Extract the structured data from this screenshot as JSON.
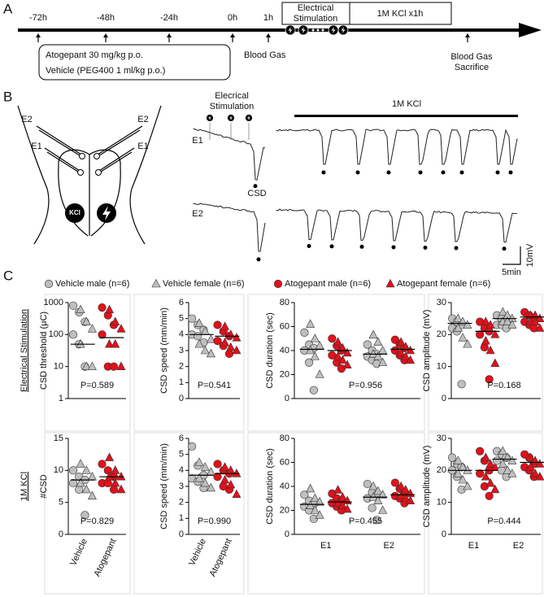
{
  "panel_labels": [
    "A",
    "B",
    "C"
  ],
  "timeline": {
    "times": [
      "-72h",
      "-48h",
      "-24h",
      "0h",
      "1h"
    ],
    "stimulation": [
      "Electrical",
      "Stimulation"
    ],
    "kcl": "1M KCl x1h",
    "treatment": [
      "Atogepant 30 mg/kg p.o.",
      "Vehicle (PEG400 1 ml/kg p.o.)"
    ],
    "blood_gas": "Blood Gas",
    "end": [
      "Blood Gas",
      "Sacrifice"
    ]
  },
  "recording": {
    "electrodes_left": [
      "E2",
      "E1"
    ],
    "electrodes_right": [
      "E2",
      "E1"
    ],
    "kcl_icon": "KCl",
    "stimulation": [
      "Elecrical",
      "Stimulation"
    ],
    "kcl": "1M KCl",
    "trace_labels": [
      "E1",
      "E2"
    ],
    "csd": "CSD",
    "scale_y": "10mV",
    "scale_x": "5min"
  },
  "legend": [
    {
      "name": "Vehicle male (n=6)",
      "color": "#bfbfbf",
      "marker": "circle"
    },
    {
      "name": "Vehicle female (n=6)",
      "color": "#bfbfbf",
      "marker": "triangle"
    },
    {
      "name": "Atogepant male (n=6)",
      "color": "#e3101a",
      "marker": "circle"
    },
    {
      "name": "Atogepant female (n=6)",
      "color": "#e3101a",
      "marker": "triangle"
    }
  ],
  "row_labels": [
    "Electrical Stimulation",
    "1M KCl"
  ],
  "chart_data": [
    {
      "type": "scatter",
      "ylabel": "CSD threshold (μC)",
      "log_scale": true,
      "ylim": [
        1,
        1000
      ],
      "yticks": [
        1,
        10,
        100,
        1000
      ],
      "annotation": "P=0.589",
      "groups": [
        {
          "male": [
            800,
            500,
            250,
            100,
            50,
            10
          ],
          "female": [
            600,
            250,
            150,
            50,
            10,
            10
          ],
          "median": 50
        },
        {
          "male": [
            700,
            400,
            200,
            100,
            10,
            10
          ],
          "female": [
            600,
            250,
            150,
            50,
            50,
            10
          ],
          "median": 80
        }
      ]
    },
    {
      "type": "scatter",
      "ylabel": "CSD speed (mm/min)",
      "ylim": [
        0,
        6
      ],
      "yticks": [
        0,
        1,
        2,
        3,
        4,
        5,
        6
      ],
      "annotation": "P=0.541",
      "groups": [
        {
          "male": [
            5.0,
            4.6,
            4.3,
            4.0,
            3.9,
            3.5
          ],
          "female": [
            4.7,
            4.2,
            3.7,
            3.4,
            3.0,
            2.8
          ],
          "median": 4.0
        },
        {
          "male": [
            4.6,
            4.2,
            3.9,
            3.6,
            3.3,
            2.8
          ],
          "female": [
            4.5,
            4.0,
            3.8,
            3.5,
            3.2,
            3.0
          ],
          "median": 3.9
        }
      ]
    },
    {
      "type": "scatter",
      "ylabel": "CSD duration (sec)",
      "ylim": [
        0,
        80
      ],
      "yticks": [
        0,
        20,
        40,
        60,
        80
      ],
      "annotation": "P=0.956",
      "groups": [
        {
          "male": [
            55,
            45,
            42,
            40,
            30,
            7
          ],
          "female": [
            62,
            50,
            44,
            40,
            35,
            20
          ],
          "median": 41
        },
        {
          "male": [
            50,
            44,
            40,
            36,
            30,
            25
          ],
          "female": [
            47,
            42,
            38,
            35,
            32,
            28
          ],
          "median": 40
        },
        {
          "male": [
            45,
            40,
            37,
            35,
            32,
            29
          ],
          "female": [
            53,
            47,
            40,
            37,
            35,
            30
          ],
          "median": 37
        },
        {
          "male": [
            49,
            45,
            42,
            40,
            36,
            32
          ],
          "female": [
            47,
            43,
            40,
            38,
            35,
            32
          ],
          "median": 41
        }
      ]
    },
    {
      "type": "scatter",
      "ylabel": "CSD amplitude (mV)",
      "ylim": [
        0,
        30
      ],
      "yticks": [
        0,
        10,
        20,
        30
      ],
      "annotation": "P=0.168",
      "groups": [
        {
          "male": [
            25,
            24,
            23,
            22,
            21,
            4.5
          ],
          "female": [
            25,
            24,
            23,
            22,
            19,
            17
          ],
          "median": 23.5
        },
        {
          "male": [
            24,
            22,
            21,
            20,
            16,
            6
          ],
          "female": [
            24,
            23,
            20,
            18,
            15,
            11
          ],
          "median": 21
        },
        {
          "male": [
            26,
            25,
            24,
            23,
            23,
            22
          ],
          "female": [
            27,
            26,
            25,
            24,
            24,
            23
          ],
          "median": 25
        },
        {
          "male": [
            27,
            26,
            25,
            24,
            23,
            22
          ],
          "female": [
            26,
            26,
            25,
            24,
            24,
            22
          ],
          "median": 25.5
        }
      ]
    },
    {
      "type": "scatter",
      "ylabel": "#CSD",
      "ylim": [
        0,
        15
      ],
      "yticks": [
        0,
        5,
        10,
        15
      ],
      "annotation": "P=0.829",
      "categories": [
        "Vehicle",
        "Atogepant"
      ],
      "groups": [
        {
          "male": [
            10,
            9,
            8.5,
            8,
            7,
            3
          ],
          "female": [
            11,
            10,
            9,
            8,
            7,
            6
          ],
          "median": 8.5
        },
        {
          "male": [
            11,
            10,
            9,
            8,
            8,
            7
          ],
          "female": [
            12,
            10,
            9,
            9,
            8,
            7
          ],
          "median": 9
        }
      ]
    },
    {
      "type": "scatter",
      "ylabel": "CSD speed (mm/min)",
      "ylim": [
        0,
        6
      ],
      "yticks": [
        0,
        1,
        2,
        3,
        4,
        5,
        6
      ],
      "annotation": "P=0.990",
      "categories": [
        "Vehicle",
        "Atogepant"
      ],
      "groups": [
        {
          "male": [
            5.5,
            4.3,
            3.7,
            3.5,
            3.3,
            2.9
          ],
          "female": [
            4.5,
            4.2,
            3.9,
            3.5,
            3.2,
            2.9
          ],
          "median": 3.7
        },
        {
          "male": [
            4.4,
            4.0,
            3.8,
            3.6,
            3.0,
            2.8
          ],
          "female": [
            4.2,
            4.0,
            3.8,
            3.4,
            3.1,
            2.5
          ],
          "median": 3.8
        }
      ]
    },
    {
      "type": "scatter",
      "ylabel": "CSD duration (sec)",
      "ylim": [
        0,
        80
      ],
      "yticks": [
        0,
        20,
        40,
        60,
        80
      ],
      "annotation": "P=0.455",
      "categories": [
        "E1",
        "E2"
      ],
      "groups": [
        {
          "male": [
            33,
            28,
            25,
            23,
            20,
            13
          ],
          "female": [
            38,
            30,
            27,
            24,
            20,
            16
          ],
          "median": 25
        },
        {
          "male": [
            34,
            30,
            28,
            26,
            23,
            20
          ],
          "female": [
            37,
            31,
            28,
            26,
            24,
            21
          ],
          "median": 27
        },
        {
          "male": [
            42,
            35,
            33,
            30,
            22,
            12
          ],
          "female": [
            40,
            36,
            33,
            31,
            28,
            20
          ],
          "median": 31
        },
        {
          "male": [
            43,
            38,
            35,
            32,
            30,
            26
          ],
          "female": [
            40,
            37,
            34,
            32,
            30,
            28
          ],
          "median": 33
        }
      ]
    },
    {
      "type": "scatter",
      "ylabel": "CSD amplitude (mV)",
      "ylim": [
        0,
        30
      ],
      "yticks": [
        0,
        10,
        20,
        30
      ],
      "annotation": "P=0.444",
      "categories": [
        "E1",
        "E2"
      ],
      "groups": [
        {
          "male": [
            24,
            22,
            21,
            20,
            18,
            14
          ],
          "female": [
            23,
            21,
            20,
            19,
            17,
            15
          ],
          "median": 20
        },
        {
          "male": [
            26,
            23,
            20,
            19,
            15,
            12
          ],
          "female": [
            24,
            22,
            21,
            18,
            16,
            14
          ],
          "median": 20
        },
        {
          "male": [
            26,
            25,
            24,
            23,
            20,
            18
          ],
          "female": [
            26,
            24,
            23,
            22,
            20,
            19
          ],
          "median": 23.5
        },
        {
          "male": [
            25,
            24,
            22,
            21,
            20,
            18
          ],
          "female": [
            24,
            23,
            22,
            21,
            19,
            18
          ],
          "median": 22.5
        }
      ]
    }
  ]
}
